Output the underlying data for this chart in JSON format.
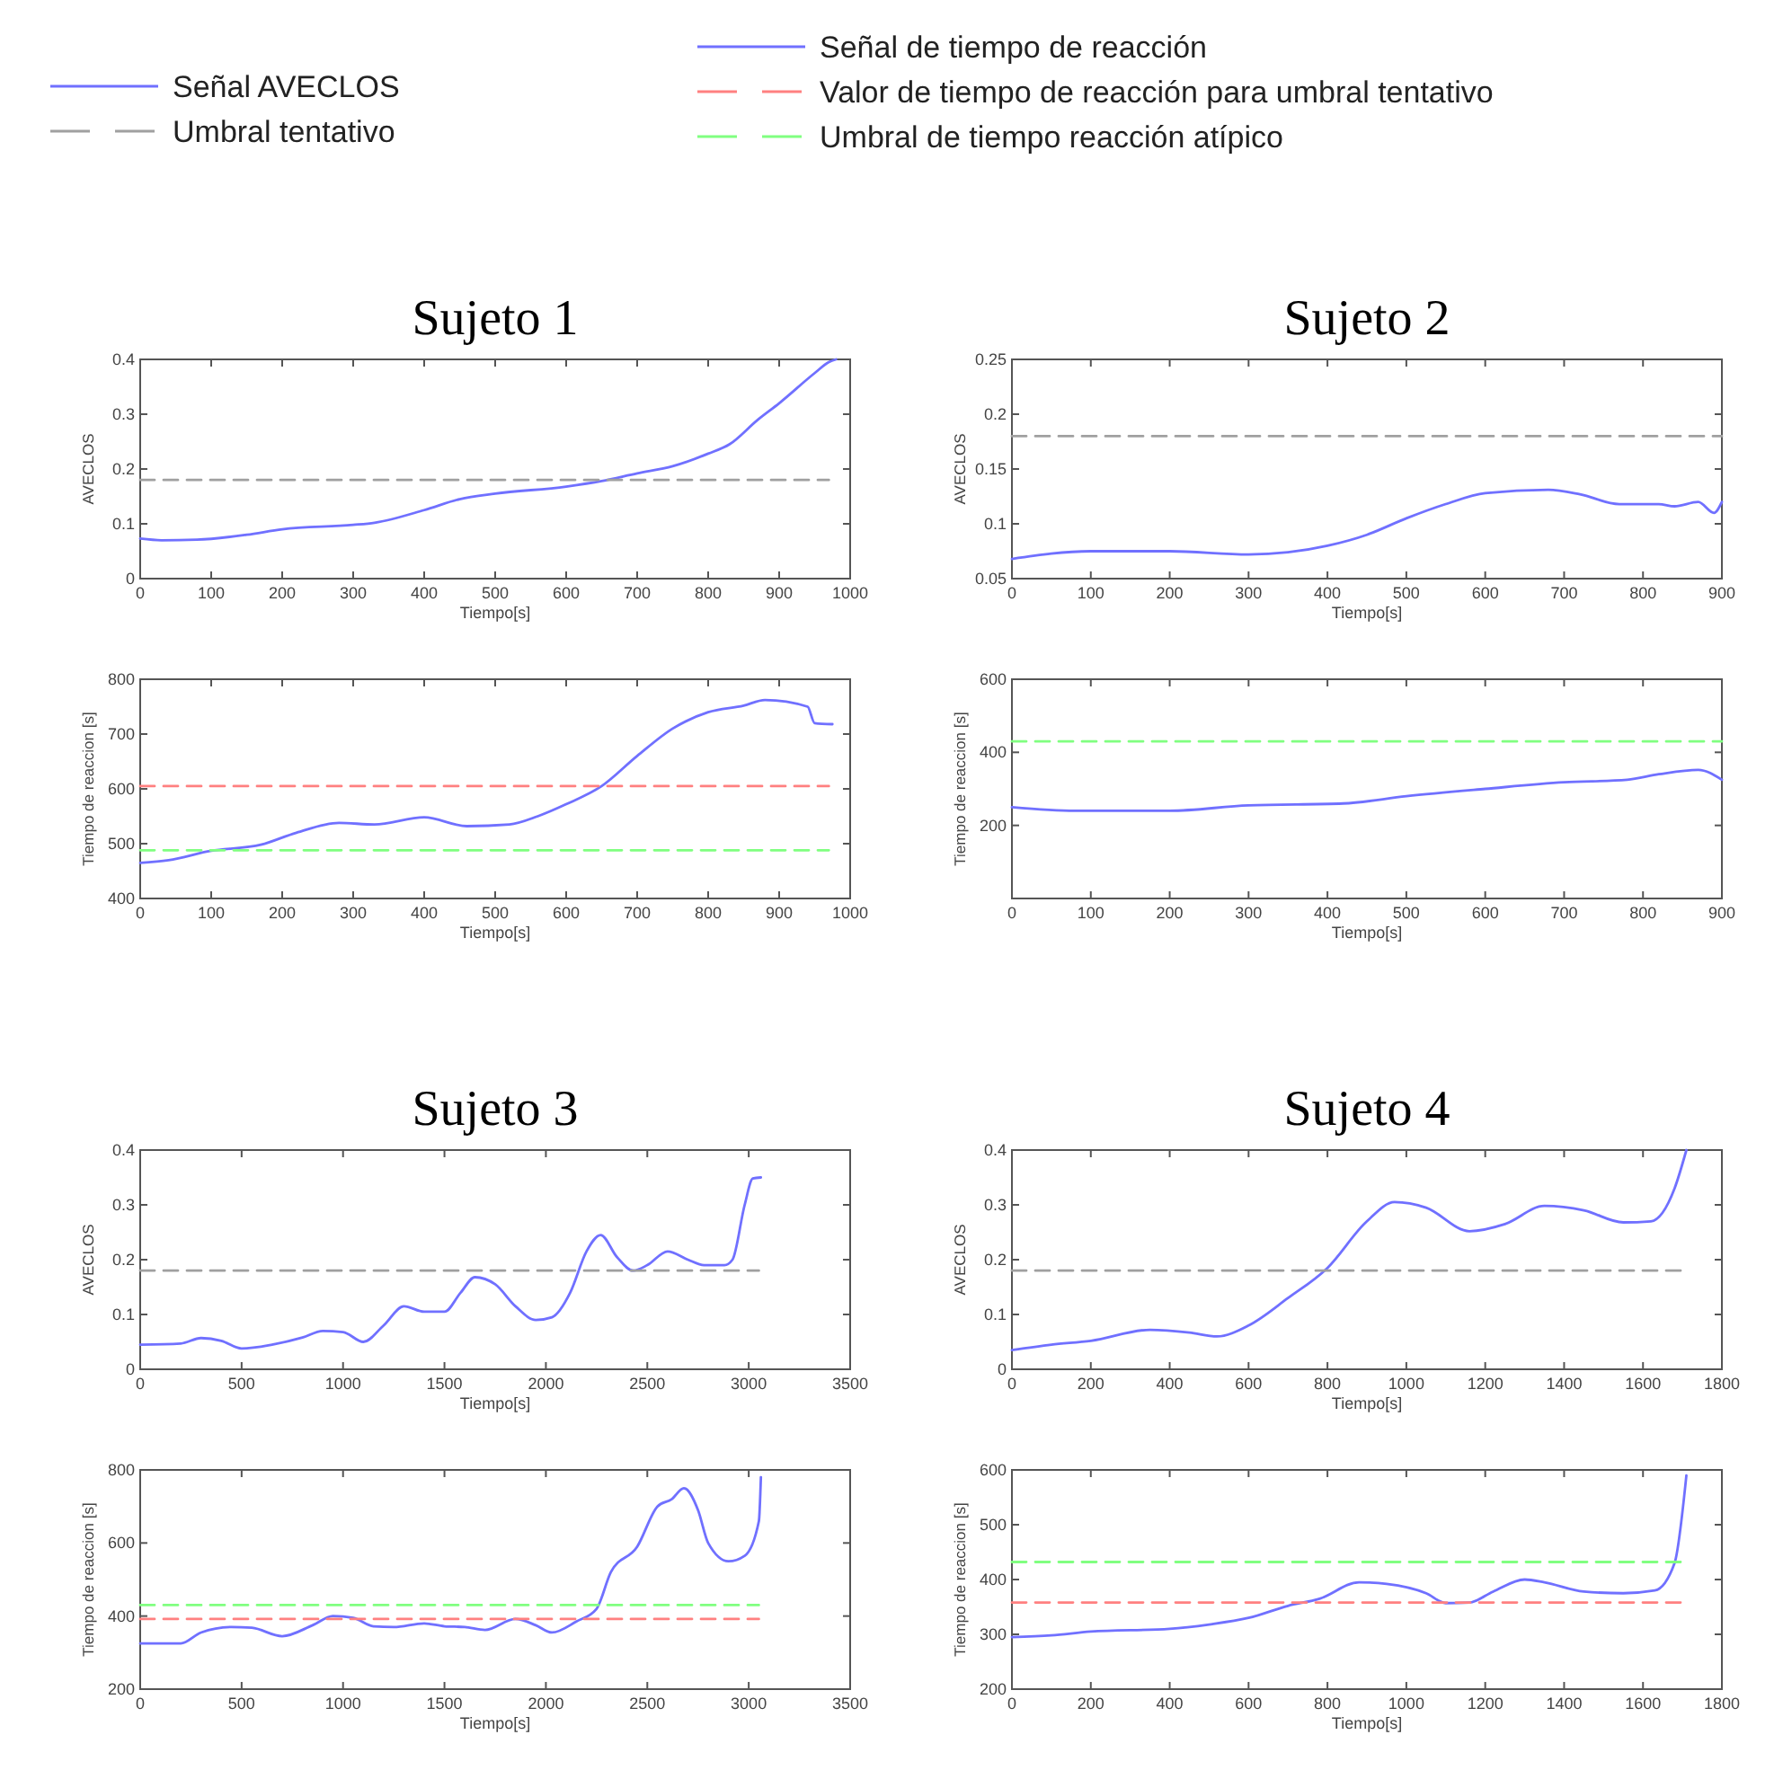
{
  "chart_data": [
    {
      "type": "line",
      "title": "Sujeto 1",
      "xlabel": "Tiempo[s]",
      "ylabel": "AVECLOS",
      "xlim": [
        0,
        1000
      ],
      "xticks": [
        0,
        100,
        200,
        300,
        400,
        500,
        600,
        700,
        800,
        900,
        1000
      ],
      "ylim": [
        0,
        0.4
      ],
      "yticks": [
        0,
        0.1,
        0.2,
        0.3,
        0.4
      ],
      "legend": "top",
      "grid": false,
      "series": [
        {
          "name": "Señal  AVECLOS",
          "color": "#7070ff",
          "line_style": "solid",
          "x": [
            0,
            30,
            80,
            150,
            200,
            300,
            330,
            400,
            450,
            500,
            600,
            650,
            700,
            750,
            800,
            830,
            870,
            900,
            950,
            970,
            980
          ],
          "values": [
            0.073,
            0.07,
            0.071,
            0.08,
            0.09,
            0.098,
            0.102,
            0.125,
            0.145,
            0.155,
            0.168,
            0.178,
            0.192,
            0.205,
            0.228,
            0.245,
            0.29,
            0.32,
            0.375,
            0.395,
            0.4
          ]
        },
        {
          "name": "Umbral tentativo",
          "color": "#a0a0a0",
          "line_style": "dashed",
          "x": [
            0,
            970
          ],
          "values": [
            0.18,
            0.18
          ]
        }
      ]
    },
    {
      "type": "line",
      "title": "Sujeto 2",
      "xlabel": "Tiempo[s]",
      "ylabel": "AVECLOS",
      "xlim": [
        0,
        900
      ],
      "xticks": [
        0,
        100,
        200,
        300,
        400,
        500,
        600,
        700,
        800,
        900
      ],
      "ylim": [
        0.05,
        0.25
      ],
      "yticks": [
        0.05,
        0.1,
        0.15,
        0.2,
        0.25
      ],
      "grid": false,
      "series": [
        {
          "color": "#7070ff",
          "line_style": "solid",
          "x": [
            0,
            100,
            200,
            300,
            350,
            400,
            450,
            500,
            550,
            600,
            680,
            720,
            770,
            820,
            840,
            870,
            890,
            900
          ],
          "values": [
            0.068,
            0.075,
            0.075,
            0.072,
            0.074,
            0.08,
            0.09,
            0.105,
            0.118,
            0.128,
            0.131,
            0.127,
            0.118,
            0.118,
            0.116,
            0.12,
            0.11,
            0.12
          ]
        },
        {
          "color": "#a0a0a0",
          "line_style": "dashed",
          "x": [
            0,
            900
          ],
          "values": [
            0.18,
            0.18
          ]
        }
      ]
    },
    {
      "type": "line",
      "xlabel": "Tiempo[s]",
      "ylabel": "Tiempo de reaccion [s]",
      "xlim": [
        0,
        1000
      ],
      "xticks": [
        0,
        100,
        200,
        300,
        400,
        500,
        600,
        700,
        800,
        900,
        1000
      ],
      "ylim": [
        400,
        800
      ],
      "yticks": [
        400,
        500,
        600,
        700,
        800
      ],
      "legend": "top",
      "grid": false,
      "series": [
        {
          "name": "Señal de tiempo de reacción",
          "color": "#7070ff",
          "line_style": "solid",
          "x": [
            0,
            40,
            100,
            170,
            220,
            280,
            330,
            400,
            460,
            520,
            560,
            600,
            650,
            700,
            750,
            800,
            850,
            880,
            940,
            950,
            975
          ],
          "values": [
            465,
            470,
            487,
            498,
            520,
            538,
            535,
            548,
            532,
            535,
            550,
            572,
            605,
            660,
            710,
            740,
            752,
            762,
            750,
            720,
            718
          ]
        },
        {
          "name": "Valor de tiempo de reacción para umbral tentativo",
          "color": "#ff8080",
          "line_style": "dashed",
          "x": [
            0,
            970
          ],
          "values": [
            605,
            605
          ]
        },
        {
          "name": "Umbral de tiempo reacción atípico",
          "color": "#80ff80",
          "line_style": "dashed",
          "x": [
            0,
            970
          ],
          "values": [
            488,
            488
          ]
        }
      ]
    },
    {
      "type": "line",
      "xlabel": "Tiempo[s]",
      "ylabel": "Tiempo de reaccion [s]",
      "xlim": [
        0,
        900
      ],
      "xticks": [
        0,
        100,
        200,
        300,
        400,
        500,
        600,
        700,
        800,
        900
      ],
      "ylim": [
        0,
        600
      ],
      "yticks": [
        {
          "value": 0,
          "label": null
        },
        200,
        400,
        600
      ],
      "grid": false,
      "series": [
        {
          "color": "#7070ff",
          "line_style": "solid",
          "x": [
            0,
            80,
            200,
            300,
            420,
            500,
            600,
            700,
            780,
            820,
            870,
            900
          ],
          "values": [
            250,
            240,
            240,
            255,
            260,
            280,
            300,
            318,
            325,
            340,
            352,
            325
          ]
        },
        {
          "color": "#80ff80",
          "line_style": "dashed",
          "x": [
            0,
            900
          ],
          "values": [
            430,
            430
          ]
        }
      ]
    },
    {
      "type": "line",
      "title": "Sujeto 3",
      "xlabel": "Tiempo[s]",
      "ylabel": "AVECLOS",
      "xlim": [
        0,
        3500
      ],
      "xticks": [
        0,
        500,
        1000,
        1500,
        2000,
        2500,
        3000,
        3500
      ],
      "ylim": [
        0,
        0.4
      ],
      "yticks": [
        0,
        0.1,
        0.2,
        0.3,
        0.4
      ],
      "grid": false,
      "series": [
        {
          "color": "#7070ff",
          "line_style": "solid",
          "x": [
            0,
            200,
            300,
            400,
            500,
            650,
            800,
            900,
            1000,
            1100,
            1200,
            1300,
            1400,
            1500,
            1580,
            1650,
            1750,
            1850,
            1950,
            2030,
            2120,
            2200,
            2270,
            2350,
            2430,
            2500,
            2600,
            2700,
            2780,
            2880,
            2920,
            2980,
            3020,
            3060
          ],
          "values": [
            0.045,
            0.047,
            0.057,
            0.052,
            0.038,
            0.045,
            0.058,
            0.07,
            0.068,
            0.05,
            0.08,
            0.115,
            0.105,
            0.105,
            0.14,
            0.168,
            0.155,
            0.115,
            0.09,
            0.095,
            0.14,
            0.215,
            0.245,
            0.205,
            0.18,
            0.19,
            0.215,
            0.2,
            0.19,
            0.19,
            0.2,
            0.3,
            0.348,
            0.35
          ]
        },
        {
          "color": "#a0a0a0",
          "line_style": "dashed",
          "x": [
            0,
            3050
          ],
          "values": [
            0.18,
            0.18
          ]
        }
      ]
    },
    {
      "type": "line",
      "title": "Sujeto 4",
      "xlabel": "Tiempo[s]",
      "ylabel": "AVECLOS",
      "xlim": [
        0,
        1800
      ],
      "xticks": [
        0,
        200,
        400,
        600,
        800,
        1000,
        1200,
        1400,
        1600,
        1800
      ],
      "ylim": [
        0,
        0.4
      ],
      "yticks": [
        0,
        0.1,
        0.2,
        0.3,
        0.4
      ],
      "grid": false,
      "series": [
        {
          "color": "#7070ff",
          "line_style": "solid",
          "x": [
            0,
            100,
            200,
            350,
            450,
            520,
            600,
            700,
            800,
            900,
            970,
            1050,
            1160,
            1250,
            1350,
            1450,
            1550,
            1620,
            1680,
            1710
          ],
          "values": [
            0.035,
            0.045,
            0.052,
            0.072,
            0.067,
            0.06,
            0.08,
            0.13,
            0.185,
            0.27,
            0.305,
            0.295,
            0.252,
            0.265,
            0.298,
            0.29,
            0.268,
            0.27,
            0.33,
            0.4
          ]
        },
        {
          "color": "#a0a0a0",
          "line_style": "dashed",
          "x": [
            0,
            1710
          ],
          "values": [
            0.18,
            0.18
          ]
        }
      ]
    },
    {
      "type": "line",
      "xlabel": "Tiempo[s]",
      "ylabel": "Tiempo de reaccion [s]",
      "xlim": [
        0,
        3500
      ],
      "xticks": [
        0,
        500,
        1000,
        1500,
        2000,
        2500,
        3000,
        3500
      ],
      "ylim": [
        200,
        800
      ],
      "yticks": [
        200,
        400,
        600,
        800
      ],
      "grid": false,
      "series": [
        {
          "color": "#7070ff",
          "line_style": "solid",
          "x": [
            0,
            200,
            300,
            450,
            550,
            700,
            850,
            950,
            1050,
            1150,
            1250,
            1400,
            1500,
            1600,
            1700,
            1850,
            1950,
            2030,
            2150,
            2250,
            2320,
            2450,
            2550,
            2620,
            2680,
            2750,
            2800,
            2900,
            2980,
            3050,
            3060
          ],
          "values": [
            325,
            325,
            355,
            370,
            368,
            345,
            375,
            400,
            395,
            372,
            370,
            380,
            372,
            370,
            362,
            392,
            375,
            355,
            385,
            420,
            520,
            590,
            700,
            720,
            750,
            690,
            600,
            550,
            565,
            660,
            780
          ]
        },
        {
          "color": "#ff8080",
          "line_style": "dashed",
          "x": [
            0,
            3050
          ],
          "values": [
            392,
            392
          ]
        },
        {
          "color": "#80ff80",
          "line_style": "dashed",
          "x": [
            0,
            3050
          ],
          "values": [
            430,
            430
          ]
        }
      ]
    },
    {
      "type": "line",
      "xlabel": "Tiempo[s]",
      "ylabel": "Tiempo de reaccion [s]",
      "xlim": [
        0,
        1800
      ],
      "xticks": [
        0,
        200,
        400,
        600,
        800,
        1000,
        1200,
        1400,
        1600,
        1800
      ],
      "ylim": [
        200,
        600
      ],
      "yticks": [
        200,
        300,
        400,
        500,
        600
      ],
      "grid": false,
      "series": [
        {
          "color": "#7070ff",
          "line_style": "solid",
          "x": [
            0,
            100,
            200,
            400,
            500,
            600,
            700,
            780,
            880,
            950,
            1050,
            1100,
            1160,
            1220,
            1300,
            1350,
            1450,
            1550,
            1630,
            1680,
            1710
          ],
          "values": [
            295,
            298,
            305,
            310,
            318,
            330,
            352,
            365,
            395,
            392,
            375,
            357,
            358,
            378,
            400,
            395,
            378,
            375,
            380,
            430,
            590
          ]
        },
        {
          "color": "#ff8080",
          "line_style": "dashed",
          "x": [
            0,
            1710
          ],
          "values": [
            358,
            358
          ]
        },
        {
          "color": "#80ff80",
          "line_style": "dashed",
          "x": [
            0,
            1710
          ],
          "values": [
            432,
            432
          ]
        }
      ]
    }
  ]
}
